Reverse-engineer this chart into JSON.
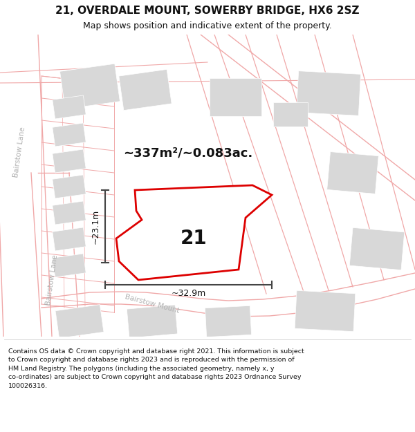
{
  "title": "21, OVERDALE MOUNT, SOWERBY BRIDGE, HX6 2SZ",
  "subtitle": "Map shows position and indicative extent of the property.",
  "footer": "Contains OS data © Crown copyright and database right 2021. This information is subject\nto Crown copyright and database rights 2023 and is reproduced with the permission of\nHM Land Registry. The polygons (including the associated geometry, namely x, y\nco-ordinates) are subject to Crown copyright and database rights 2023 Ordnance Survey\n100026316.",
  "area_label": "~337m²/~0.083ac.",
  "number_label": "21",
  "width_label": "~32.9m",
  "height_label": "~23.1m",
  "map_bg": "#ffffff",
  "road_color": "#f0a8a8",
  "building_color": "#d8d8d8",
  "plot_color": "#dd0000",
  "dim_color": "#444444",
  "street_label_color": "#b0b0b0",
  "title_color": "#111111",
  "figsize": [
    6.0,
    6.25
  ],
  "dpi": 100
}
